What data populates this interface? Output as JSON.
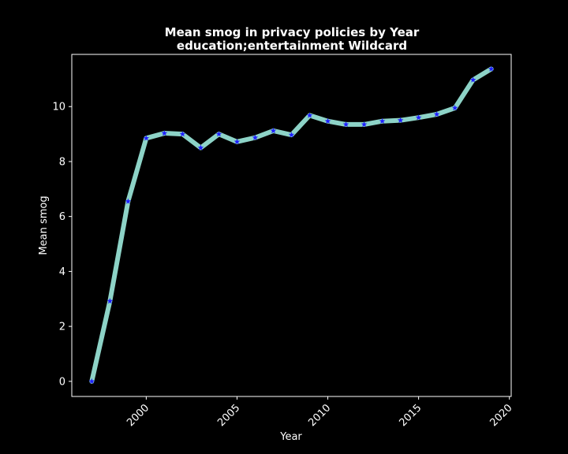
{
  "chart_data": {
    "type": "line",
    "title": "Mean smog in privacy policies by Year\neducation;entertainment Wildcard",
    "title_lines": [
      "Mean smog in privacy policies by Year",
      "education;entertainment Wildcard"
    ],
    "xlabel": "Year",
    "ylabel": "Mean smog",
    "xlim": [
      1995.9,
      2020.1
    ],
    "ylim": [
      -0.55,
      11.9
    ],
    "xticks": [
      2000,
      2005,
      2010,
      2015,
      2020
    ],
    "yticks": [
      0,
      2,
      4,
      6,
      8,
      10
    ],
    "x": [
      1997,
      1998,
      1999,
      2000,
      2001,
      2002,
      2003,
      2004,
      2005,
      2006,
      2007,
      2008,
      2009,
      2010,
      2011,
      2012,
      2013,
      2014,
      2015,
      2016,
      2017,
      2018,
      2019
    ],
    "series": [
      {
        "values": [
          0.0,
          2.92,
          6.55,
          8.85,
          9.03,
          9.0,
          8.5,
          9.0,
          8.72,
          8.87,
          9.12,
          8.97,
          9.68,
          9.47,
          9.35,
          9.35,
          9.47,
          9.5,
          9.6,
          9.72,
          9.95,
          10.97,
          11.37
        ],
        "line_color": "#8dd3c7",
        "marker_color": "#1f1fff",
        "marker": "star"
      }
    ],
    "grid": false,
    "legend": "none"
  },
  "colors": {
    "background": "#000000",
    "foreground": "#ffffff",
    "line": "#8dd3c7",
    "marker": "#1f1fff"
  }
}
